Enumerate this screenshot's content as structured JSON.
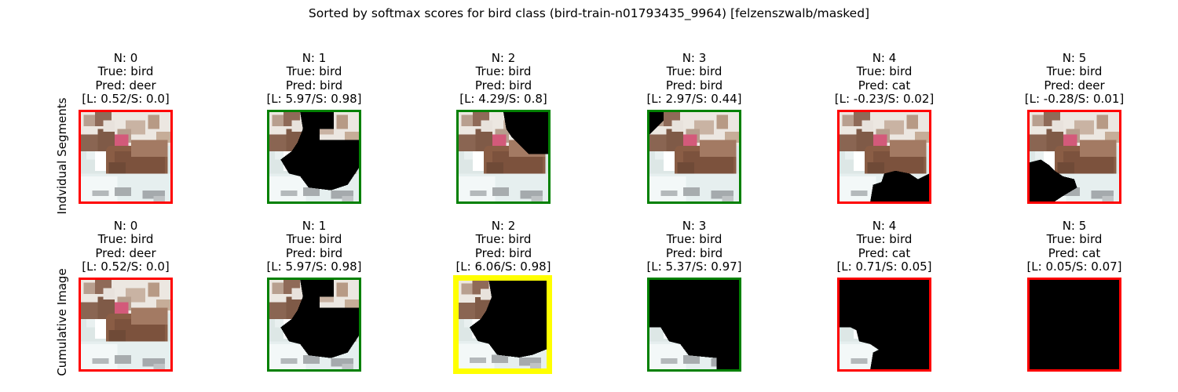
{
  "figure": {
    "title": "Sorted by softmax scores for bird class (bird-train-n01793435_9964) [felzenszwalb/masked]"
  },
  "colors": {
    "correct": "#008000",
    "incorrect": "#ff0000",
    "best": "#ffff00",
    "mask": "#000000"
  },
  "rows": [
    {
      "label": "Indvidual Segments",
      "panels": [
        {
          "n": "N: 0",
          "true_label": "True: bird",
          "pred": "Pred: deer",
          "scores": "[L: 0.52/S: 0.0]",
          "border": "incorrect",
          "mask": "none"
        },
        {
          "n": "N: 1",
          "true_label": "True: bird",
          "pred": "Pred: bird",
          "scores": "[L: 5.97/S: 0.98]",
          "border": "correct",
          "mask": "ind1"
        },
        {
          "n": "N: 2",
          "true_label": "True: bird",
          "pred": "Pred: bird",
          "scores": "[L: 4.29/S: 0.8]",
          "border": "correct",
          "mask": "ind2"
        },
        {
          "n": "N: 3",
          "true_label": "True: bird",
          "pred": "Pred: bird",
          "scores": "[L: 2.97/S: 0.44]",
          "border": "correct",
          "mask": "ind3"
        },
        {
          "n": "N: 4",
          "true_label": "True: bird",
          "pred": "Pred: cat",
          "scores": "[L: -0.23/S: 0.02]",
          "border": "incorrect",
          "mask": "ind4"
        },
        {
          "n": "N: 5",
          "true_label": "True: bird",
          "pred": "Pred: deer",
          "scores": "[L: -0.28/S: 0.01]",
          "border": "incorrect",
          "mask": "ind5"
        }
      ]
    },
    {
      "label": "Cumulative Image",
      "panels": [
        {
          "n": "N: 0",
          "true_label": "True: bird",
          "pred": "Pred: deer",
          "scores": "[L: 0.52/S: 0.0]",
          "border": "incorrect",
          "mask": "none"
        },
        {
          "n": "N: 1",
          "true_label": "True: bird",
          "pred": "Pred: bird",
          "scores": "[L: 5.97/S: 0.98]",
          "border": "correct",
          "mask": "cum1"
        },
        {
          "n": "N: 2",
          "true_label": "True: bird",
          "pred": "Pred: bird",
          "scores": "[L: 6.06/S: 0.98]",
          "border": "best",
          "mask": "cum2"
        },
        {
          "n": "N: 3",
          "true_label": "True: bird",
          "pred": "Pred: bird",
          "scores": "[L: 5.37/S: 0.97]",
          "border": "correct",
          "mask": "cum3"
        },
        {
          "n": "N: 4",
          "true_label": "True: bird",
          "pred": "Pred: cat",
          "scores": "[L: 0.71/S: 0.05]",
          "border": "incorrect",
          "mask": "cum4"
        },
        {
          "n": "N: 5",
          "true_label": "True: bird",
          "pred": "Pred: cat",
          "scores": "[L: 0.05/S: 0.07]",
          "border": "incorrect",
          "mask": "full"
        }
      ]
    }
  ]
}
